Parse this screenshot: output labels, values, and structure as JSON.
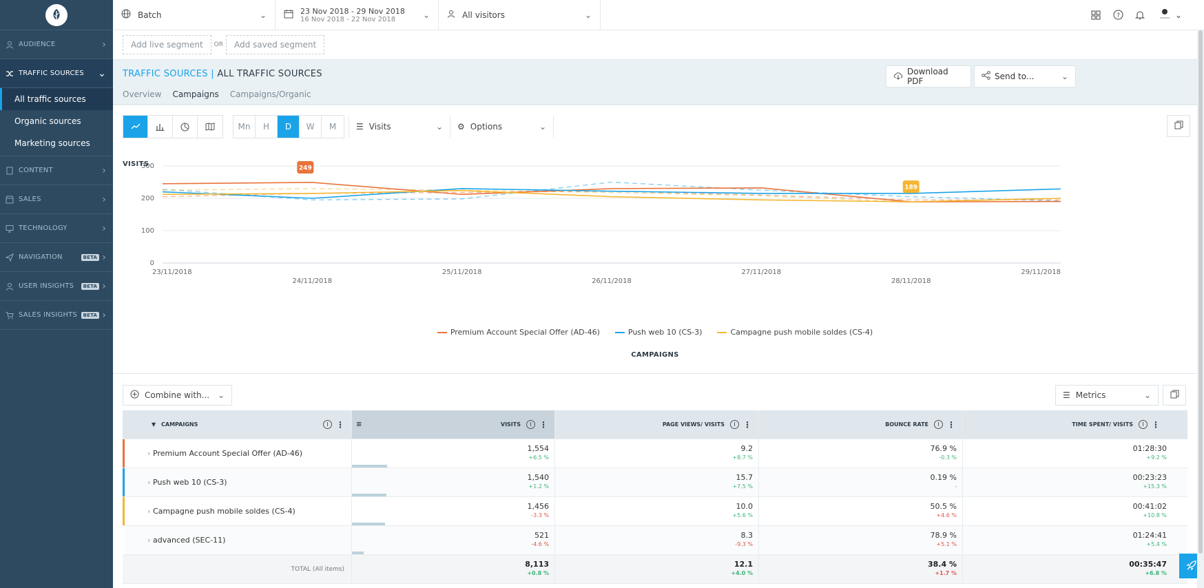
{
  "sidebar": {
    "items": [
      {
        "key": "audience",
        "label": "AUDIENCE",
        "icon": "user-icon",
        "beta": false
      },
      {
        "key": "traffic",
        "label": "TRAFFIC SOURCES",
        "icon": "shuffle-icon",
        "beta": false,
        "expanded": true
      },
      {
        "key": "content",
        "label": "CONTENT",
        "icon": "document-icon",
        "beta": false
      },
      {
        "key": "sales",
        "label": "SALES",
        "icon": "store-icon",
        "beta": false
      },
      {
        "key": "technology",
        "label": "TECHNOLOGY",
        "icon": "monitor-icon",
        "beta": false
      },
      {
        "key": "navigation",
        "label": "NAVIGATION",
        "icon": "paper-plane-icon",
        "beta": true
      },
      {
        "key": "userinsights",
        "label": "USER INSIGHTS",
        "icon": "user-icon",
        "beta": true
      },
      {
        "key": "salesinsights",
        "label": "SALES INSIGHTS",
        "icon": "cart-icon",
        "beta": true
      }
    ],
    "beta_label": "BETA",
    "sub_items": [
      "All traffic sources",
      "Organic sources",
      "Marketing sources"
    ]
  },
  "topbar": {
    "site": "Batch",
    "date_main": "23 Nov 2018 - 29 Nov 2018",
    "date_compare": "16 Nov 2018 - 22 Nov 2018",
    "visitors": "All visitors"
  },
  "segments": {
    "live": "Add live segment",
    "or": "OR",
    "saved": "Add saved segment"
  },
  "header": {
    "title_section": "TRAFFIC SOURCES",
    "separator": " | ",
    "title_page": "ALL TRAFFIC SOURCES",
    "tabs": [
      "Overview",
      "Campaigns",
      "Campaigns/Organic"
    ],
    "active_tab": 1,
    "download_label": "Download PDF",
    "send_label": "Send to..."
  },
  "toolbar": {
    "periods": [
      "Mn",
      "H",
      "D",
      "W",
      "M"
    ],
    "active_period": "D",
    "metric": "Visits",
    "options": "Options"
  },
  "chart_title": "VISITS",
  "campaigns_title": "CAMPAIGNS",
  "chart_data": {
    "type": "line",
    "title": "VISITS",
    "x": [
      "23/11/2018",
      "24/11/2018",
      "25/11/2018",
      "26/11/2018",
      "27/11/2018",
      "28/11/2018",
      "29/11/2018"
    ],
    "ylim": [
      0,
      300
    ],
    "yticks": [
      0,
      100,
      200,
      300
    ],
    "grid": true,
    "legend": "bottom-center",
    "series": [
      {
        "name": "Premium Account Special Offer (AD-46)",
        "color": "#e8743b",
        "values": [
          245,
          249,
          212,
          230,
          232,
          189,
          190
        ],
        "compare": [
          205,
          215,
          218,
          222,
          210,
          195,
          195
        ]
      },
      {
        "name": "Push web 10 (CS-3)",
        "color": "#1aa3e8",
        "values": [
          220,
          200,
          230,
          222,
          215,
          215,
          229
        ],
        "compare": [
          228,
          195,
          198,
          250,
          225,
          205,
          192
        ]
      },
      {
        "name": "Campagne push mobile soldes (CS-4)",
        "color": "#f4b731",
        "values": [
          212,
          215,
          224,
          205,
          195,
          189,
          200
        ],
        "compare": [
          225,
          230,
          225,
          218,
          208,
          188,
          200
        ]
      }
    ],
    "annotations": [
      {
        "label": "249",
        "series": 0,
        "index": 1,
        "color": "#e8743b"
      },
      {
        "label": "189",
        "series": 2,
        "index": 5,
        "color": "#f4b731"
      }
    ]
  },
  "table": {
    "combine_label": "Combine with...",
    "metrics_label": "Metrics",
    "headers": [
      "CAMPAIGNS",
      "VISITS",
      "PAGE VIEWS/ VISITS",
      "BOUNCE RATE",
      "TIME SPENT/ VISITS"
    ],
    "max_visits": 8113,
    "rows": [
      {
        "name": "Premium Account Special Offer (AD-46)",
        "color": "#e8743b",
        "visits": "1,554",
        "visits_raw": 1554,
        "visits_d": "+6.5 %",
        "visits_s": "pos",
        "pv": "9.2",
        "pv_d": "+8.7 %",
        "pv_s": "pos",
        "br": "76.9 %",
        "br_d": "-0.3 %",
        "br_s": "pos",
        "ts": "01:28:30",
        "ts_d": "+9.2 %",
        "ts_s": "pos"
      },
      {
        "name": "Push web 10 (CS-3)",
        "color": "#1aa3e8",
        "visits": "1,540",
        "visits_raw": 1540,
        "visits_d": "+1.2 %",
        "visits_s": "pos",
        "pv": "15.7",
        "pv_d": "+7.5 %",
        "pv_s": "pos",
        "br": "0.19 %",
        "br_d": "-",
        "br_s": "neu",
        "ts": "00:23:23",
        "ts_d": "+15.3 %",
        "ts_s": "pos"
      },
      {
        "name": "Campagne push mobile soldes (CS-4)",
        "color": "#f4b731",
        "visits": "1,456",
        "visits_raw": 1456,
        "visits_d": "-3.3 %",
        "visits_s": "neg",
        "pv": "10.0",
        "pv_d": "+5.6 %",
        "pv_s": "pos",
        "br": "50.5 %",
        "br_d": "+4.6 %",
        "br_s": "neg",
        "ts": "00:41:02",
        "ts_d": "+10.8 %",
        "ts_s": "pos"
      },
      {
        "name": "advanced (SEC-11)",
        "color": "#ffffff",
        "visits": "521",
        "visits_raw": 521,
        "visits_d": "-4.6 %",
        "visits_s": "neg",
        "pv": "8.3",
        "pv_d": "-9.3 %",
        "pv_s": "neg",
        "br": "78.9 %",
        "br_d": "+5.1 %",
        "br_s": "neg",
        "ts": "01:24:41",
        "ts_d": "+5.4 %",
        "ts_s": "pos"
      }
    ],
    "total": {
      "label": "TOTAL (All items)",
      "visits": "8,113",
      "visits_d": "+0.8 %",
      "visits_s": "pos",
      "pv": "12.1",
      "pv_d": "+4.0 %",
      "pv_s": "pos",
      "br": "38.4 %",
      "br_d": "+1.7 %",
      "br_s": "neg",
      "ts": "00:35:47",
      "ts_d": "+6.8 %",
      "ts_s": "pos"
    }
  },
  "colors": {
    "accent": "#1aa3e8",
    "sidebar": "#2d4a61",
    "positive": "#3bb27a",
    "negative": "#e0554a"
  }
}
